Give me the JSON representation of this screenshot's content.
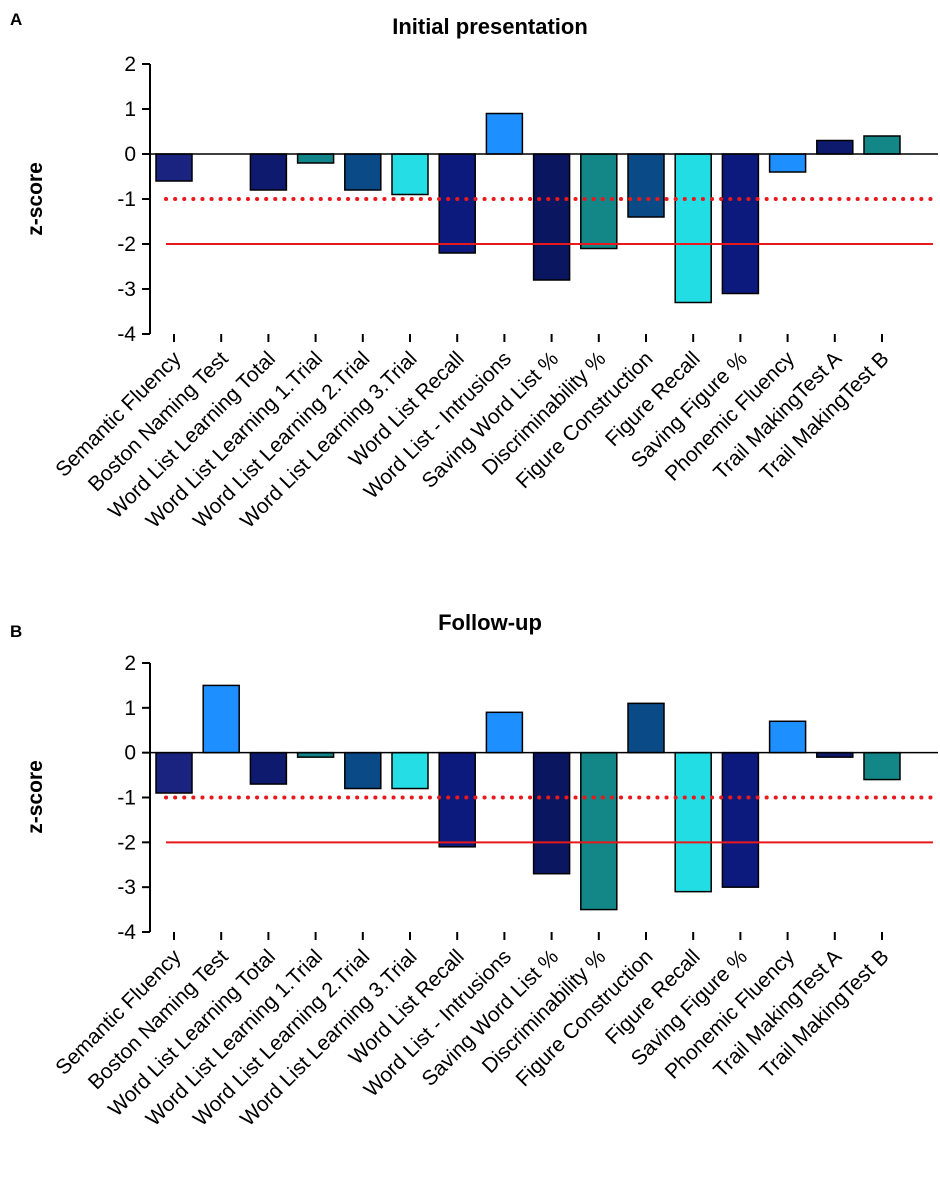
{
  "chart_data": [
    {
      "panel": "A",
      "type": "bar",
      "title": "Initial presentation",
      "ylabel": "z-score",
      "xlabel": "",
      "ylim": [
        -4,
        2
      ],
      "yticks": [
        "2",
        "1",
        "0",
        "-1",
        "-2",
        "-3",
        "-4"
      ],
      "reference_lines": [
        {
          "value": -1,
          "style": "dotted",
          "color": "#e8191c"
        },
        {
          "value": -2,
          "style": "solid",
          "color": "#e8191c"
        }
      ],
      "categories": [
        "Semantic Fluency",
        "Boston Naming Test",
        "Word List Learning Total",
        "Word List Learning 1.Trial",
        "Word List Learning 2.Trial",
        "Word List Learning 3.Trial",
        "Word List Recall",
        "Word List - Intrusions",
        "Saving Word List %",
        "Discriminability %",
        "Figure Construction",
        "Figure Recall",
        "Saving Figure %",
        "Phonemic Fluency",
        "Trail MakingTest A",
        "Trail MakingTest B"
      ],
      "values": [
        -0.6,
        null,
        -0.8,
        -0.2,
        -0.8,
        -0.9,
        -2.2,
        0.9,
        -2.8,
        -2.1,
        -1.4,
        -3.3,
        -3.1,
        -0.4,
        0.3,
        0.4
      ],
      "colors": [
        "#1a2480",
        "#1e8fff",
        "#0d1a6e",
        "#0f8589",
        "#0a4a86",
        "#25dde4",
        "#0d1a7d",
        "#1e8fff",
        "#0b1660",
        "#138787",
        "#0a4a86",
        "#22dde4",
        "#0d1a7d",
        "#1e8fff",
        "#0d1a6e",
        "#138787"
      ]
    },
    {
      "panel": "B",
      "type": "bar",
      "title": "Follow-up",
      "ylabel": "z-score",
      "xlabel": "",
      "ylim": [
        -4,
        2
      ],
      "yticks": [
        "2",
        "1",
        "0",
        "-1",
        "-2",
        "-3",
        "-4"
      ],
      "reference_lines": [
        {
          "value": -1,
          "style": "dotted",
          "color": "#e8191c"
        },
        {
          "value": -2,
          "style": "solid",
          "color": "#e8191c"
        }
      ],
      "categories": [
        "Semantic Fluency",
        "Boston Naming Test",
        "Word List Learning Total",
        "Word List Learning 1.Trial",
        "Word List Learning 2.Trial",
        "Word List Learning 3.Trial",
        "Word List Recall",
        "Word List - Intrusions",
        "Saving Word List %",
        "Discriminability %",
        "Figure Construction",
        "Figure Recall",
        "Saving Figure %",
        "Phonemic Fluency",
        "Trail MakingTest A",
        "Trail MakingTest B"
      ],
      "values": [
        -0.9,
        1.5,
        -0.7,
        -0.1,
        -0.8,
        -0.8,
        -2.1,
        0.9,
        -2.7,
        -3.5,
        1.1,
        -3.1,
        -3.0,
        0.7,
        -0.1,
        -0.6
      ],
      "colors": [
        "#1a2480",
        "#1e8fff",
        "#0d1a6e",
        "#0f8589",
        "#0a4a86",
        "#25dde4",
        "#0d1a7d",
        "#1e8fff",
        "#0b1660",
        "#138787",
        "#0a4a86",
        "#22dde4",
        "#0d1a7d",
        "#1e8fff",
        "#0d1a6e",
        "#138787"
      ]
    }
  ]
}
